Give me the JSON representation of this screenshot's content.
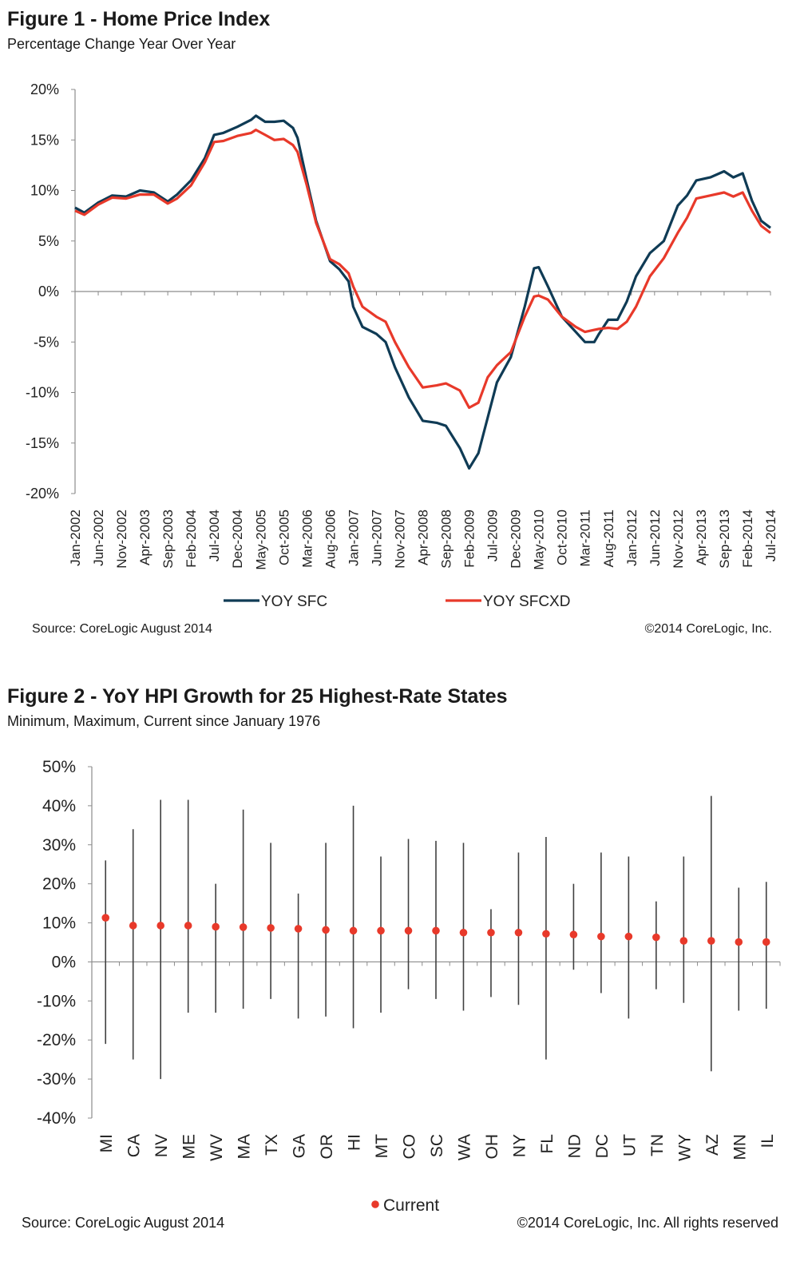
{
  "figure1": {
    "title": "Figure 1 - Home Price Index",
    "subtitle": "Percentage Change Year Over Year",
    "source": "Source: CoreLogic  August 2014",
    "copyright": "©2014 CoreLogic, Inc.",
    "colors": {
      "sfc": "#0f3b55",
      "sfcxd": "#e8392a",
      "axis": "#8c8c8c"
    }
  },
  "figure2": {
    "title": "Figure 2 - YoY HPI Growth for 25 Highest-Rate States",
    "subtitle": "Minimum, Maximum, Current since January 1976",
    "source": "Source: CoreLogic  August 2014",
    "copyright": "©2014 CoreLogic, Inc. All rights reserved",
    "colors": {
      "range": "#404040",
      "current": "#e8392a",
      "axis": "#8c8c8c"
    }
  },
  "chart_data": [
    {
      "type": "line",
      "title": "Figure 1 - Home Price Index",
      "subtitle": "Percentage Change Year Over Year",
      "ylim": [
        -20,
        20
      ],
      "yticks": [
        "20%",
        "15%",
        "10%",
        "5%",
        "0%",
        "-5%",
        "-10%",
        "-15%",
        "-20%"
      ],
      "xticks": [
        "Jan-2002",
        "Jun-2002",
        "Nov-2002",
        "Apr-2003",
        "Sep-2003",
        "Feb-2004",
        "Jul-2004",
        "Dec-2004",
        "May-2005",
        "Oct-2005",
        "Mar-2006",
        "Aug-2006",
        "Jan-2007",
        "Jun-2007",
        "Nov-2007",
        "Apr-2008",
        "Sep-2008",
        "Feb-2009",
        "Jul-2009",
        "Dec-2009",
        "May-2010",
        "Oct-2010",
        "Mar-2011",
        "Aug-2011",
        "Jan-2012",
        "Jun-2012",
        "Nov-2012",
        "Apr-2013",
        "Sep-2013",
        "Feb-2014",
        "Jul-2014"
      ],
      "x_range": [
        "2002-01",
        "2014-07"
      ],
      "legend": "bottom",
      "series": [
        {
          "name": "YOY SFC",
          "points": [
            [
              "2002-01",
              8.3
            ],
            [
              "2002-03",
              7.8
            ],
            [
              "2002-06",
              8.8
            ],
            [
              "2002-09",
              9.5
            ],
            [
              "2002-12",
              9.4
            ],
            [
              "2003-03",
              10.0
            ],
            [
              "2003-06",
              9.8
            ],
            [
              "2003-09",
              8.9
            ],
            [
              "2003-11",
              9.6
            ],
            [
              "2004-02",
              11.0
            ],
            [
              "2004-05",
              13.2
            ],
            [
              "2004-07",
              15.5
            ],
            [
              "2004-09",
              15.7
            ],
            [
              "2004-12",
              16.3
            ],
            [
              "2005-03",
              17.0
            ],
            [
              "2005-04",
              17.4
            ],
            [
              "2005-06",
              16.8
            ],
            [
              "2005-08",
              16.8
            ],
            [
              "2005-10",
              16.9
            ],
            [
              "2005-12",
              16.2
            ],
            [
              "2006-01",
              15.2
            ],
            [
              "2006-03",
              11.0
            ],
            [
              "2006-05",
              7.0
            ],
            [
              "2006-08",
              3.0
            ],
            [
              "2006-10",
              2.2
            ],
            [
              "2006-12",
              1.0
            ],
            [
              "2007-01",
              -1.5
            ],
            [
              "2007-03",
              -3.5
            ],
            [
              "2007-06",
              -4.2
            ],
            [
              "2007-08",
              -5.0
            ],
            [
              "2007-10",
              -7.5
            ],
            [
              "2008-01",
              -10.5
            ],
            [
              "2008-04",
              -12.8
            ],
            [
              "2008-07",
              -13.0
            ],
            [
              "2008-09",
              -13.3
            ],
            [
              "2008-12",
              -15.5
            ],
            [
              "2009-02",
              -17.5
            ],
            [
              "2009-04",
              -16.0
            ],
            [
              "2009-06",
              -12.5
            ],
            [
              "2009-08",
              -9.0
            ],
            [
              "2009-11",
              -6.5
            ],
            [
              "2010-02",
              -1.5
            ],
            [
              "2010-04",
              2.3
            ],
            [
              "2010-05",
              2.4
            ],
            [
              "2010-07",
              0.5
            ],
            [
              "2010-10",
              -2.5
            ],
            [
              "2011-01",
              -4.0
            ],
            [
              "2011-03",
              -5.0
            ],
            [
              "2011-05",
              -5.0
            ],
            [
              "2011-06",
              -4.2
            ],
            [
              "2011-08",
              -2.8
            ],
            [
              "2011-10",
              -2.8
            ],
            [
              "2011-12",
              -1.0
            ],
            [
              "2012-02",
              1.5
            ],
            [
              "2012-05",
              3.8
            ],
            [
              "2012-08",
              5.0
            ],
            [
              "2012-11",
              8.5
            ],
            [
              "2013-01",
              9.5
            ],
            [
              "2013-03",
              11.0
            ],
            [
              "2013-06",
              11.3
            ],
            [
              "2013-09",
              11.9
            ],
            [
              "2013-11",
              11.3
            ],
            [
              "2014-01",
              11.7
            ],
            [
              "2014-03",
              9.0
            ],
            [
              "2014-05",
              7.0
            ],
            [
              "2014-07",
              6.3
            ]
          ]
        },
        {
          "name": "YOY SFCXD",
          "points": [
            [
              "2002-01",
              8.0
            ],
            [
              "2002-03",
              7.6
            ],
            [
              "2002-06",
              8.6
            ],
            [
              "2002-09",
              9.3
            ],
            [
              "2002-12",
              9.2
            ],
            [
              "2003-03",
              9.6
            ],
            [
              "2003-06",
              9.6
            ],
            [
              "2003-09",
              8.7
            ],
            [
              "2003-11",
              9.2
            ],
            [
              "2004-02",
              10.5
            ],
            [
              "2004-05",
              12.8
            ],
            [
              "2004-07",
              14.8
            ],
            [
              "2004-09",
              14.9
            ],
            [
              "2004-12",
              15.4
            ],
            [
              "2005-03",
              15.7
            ],
            [
              "2005-04",
              16.0
            ],
            [
              "2005-06",
              15.5
            ],
            [
              "2005-08",
              15.0
            ],
            [
              "2005-10",
              15.1
            ],
            [
              "2005-12",
              14.5
            ],
            [
              "2006-01",
              13.8
            ],
            [
              "2006-03",
              10.5
            ],
            [
              "2006-05",
              6.8
            ],
            [
              "2006-08",
              3.2
            ],
            [
              "2006-10",
              2.7
            ],
            [
              "2006-12",
              1.8
            ],
            [
              "2007-01",
              0.5
            ],
            [
              "2007-03",
              -1.5
            ],
            [
              "2007-06",
              -2.5
            ],
            [
              "2007-08",
              -3.0
            ],
            [
              "2007-10",
              -5.0
            ],
            [
              "2008-01",
              -7.5
            ],
            [
              "2008-04",
              -9.5
            ],
            [
              "2008-07",
              -9.3
            ],
            [
              "2008-09",
              -9.1
            ],
            [
              "2008-12",
              -9.8
            ],
            [
              "2009-02",
              -11.5
            ],
            [
              "2009-04",
              -11.0
            ],
            [
              "2009-06",
              -8.5
            ],
            [
              "2009-08",
              -7.3
            ],
            [
              "2009-11",
              -6.0
            ],
            [
              "2010-02",
              -2.5
            ],
            [
              "2010-04",
              -0.5
            ],
            [
              "2010-05",
              -0.4
            ],
            [
              "2010-07",
              -0.8
            ],
            [
              "2010-10",
              -2.5
            ],
            [
              "2011-01",
              -3.5
            ],
            [
              "2011-03",
              -4.0
            ],
            [
              "2011-05",
              -3.8
            ],
            [
              "2011-06",
              -3.7
            ],
            [
              "2011-08",
              -3.6
            ],
            [
              "2011-10",
              -3.7
            ],
            [
              "2011-12",
              -3.0
            ],
            [
              "2012-02",
              -1.5
            ],
            [
              "2012-05",
              1.5
            ],
            [
              "2012-08",
              3.3
            ],
            [
              "2012-11",
              5.8
            ],
            [
              "2013-01",
              7.3
            ],
            [
              "2013-03",
              9.2
            ],
            [
              "2013-06",
              9.5
            ],
            [
              "2013-09",
              9.8
            ],
            [
              "2013-11",
              9.4
            ],
            [
              "2014-01",
              9.8
            ],
            [
              "2014-03",
              8.0
            ],
            [
              "2014-05",
              6.5
            ],
            [
              "2014-07",
              5.8
            ]
          ]
        }
      ]
    },
    {
      "type": "scatter",
      "title": "Figure 2 - YoY HPI Growth for 25 Highest-Rate States",
      "subtitle": "Minimum, Maximum, Current since January 1976",
      "ylim": [
        -40,
        50
      ],
      "yticks": [
        "50%",
        "40%",
        "30%",
        "20%",
        "10%",
        "0%",
        "-10%",
        "-20%",
        "-30%",
        "-40%"
      ],
      "legend": "bottom",
      "legend_label": "Current",
      "categories": [
        "MI",
        "CA",
        "NV",
        "ME",
        "WV",
        "MA",
        "TX",
        "GA",
        "OR",
        "HI",
        "MT",
        "CO",
        "SC",
        "WA",
        "OH",
        "NY",
        "FL",
        "ND",
        "DC",
        "UT",
        "TN",
        "WY",
        "AZ",
        "MN",
        "IL"
      ],
      "max": [
        26,
        34,
        41.5,
        41.5,
        20,
        39,
        30.5,
        17.5,
        30.5,
        40,
        27,
        31.5,
        31,
        30.5,
        13.5,
        28,
        32,
        20,
        28,
        27,
        15.5,
        27,
        42.5,
        19,
        20.5
      ],
      "min": [
        -21,
        -25,
        -30,
        -13,
        -13,
        -12,
        -9.5,
        -14.5,
        -14,
        -17,
        -13,
        -7,
        -9.5,
        -12.5,
        -9,
        -11,
        -25,
        -2,
        -8,
        -14.5,
        -7,
        -10.5,
        -28,
        -12.5,
        -12
      ],
      "current": [
        11.3,
        9.3,
        9.3,
        9.3,
        9.0,
        8.9,
        8.7,
        8.5,
        8.2,
        8.0,
        8.0,
        8.0,
        8.0,
        7.5,
        7.5,
        7.5,
        7.2,
        7.0,
        6.5,
        6.5,
        6.3,
        5.4,
        5.4,
        5.1,
        5.1
      ]
    }
  ]
}
